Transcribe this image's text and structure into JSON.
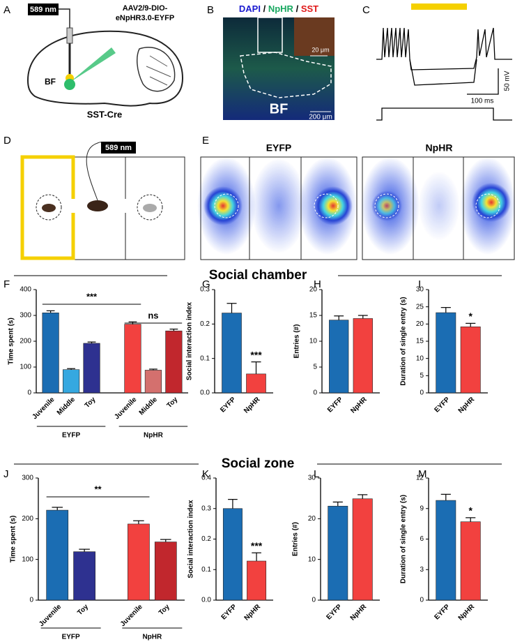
{
  "figure": {
    "panel_labels": [
      "A",
      "B",
      "C",
      "D",
      "E",
      "F",
      "G",
      "H",
      "I",
      "J",
      "K",
      "L",
      "M"
    ],
    "sections": [
      "Social chamber",
      "Social zone"
    ],
    "panel_a": {
      "laser": "589 nm",
      "virus": [
        "AAV2/9-DIO-",
        "eNpHR3.0-EYFP"
      ],
      "region": "BF",
      "mouse": "SST-Cre"
    },
    "panel_b": {
      "channels": [
        "DAPI",
        "NpHR",
        "SST"
      ],
      "separator": "/",
      "inset_scale": "20 μm",
      "region": "BF",
      "scale": "200 μm"
    },
    "panel_c": {
      "voltage_scale": "50 mV",
      "time_scale": "100 ms"
    },
    "panel_d": {
      "laser": "589 nm"
    },
    "panel_e": {
      "groups": [
        "EYFP",
        "NpHR"
      ]
    }
  },
  "chart_data": [
    {
      "type": "bar",
      "y_label": "Time spent (s)",
      "categories": [
        "Juvenile",
        "Middle",
        "Toy",
        "Juvenile",
        "Middle",
        "Toy"
      ],
      "values": [
        310,
        90,
        192,
        266,
        88,
        240
      ],
      "errors": [
        8,
        4,
        5,
        9,
        4,
        7
      ],
      "colors": [
        "#1b6db3",
        "#35a8e0",
        "#2e3190",
        "#f2413f",
        "#d4706e",
        "#c1272d"
      ],
      "groups": [
        "EYFP",
        "NpHR"
      ],
      "annotations": [
        "***",
        "ns"
      ],
      "ylim": [
        0,
        400
      ],
      "yticks": [
        0,
        100,
        200,
        300,
        400
      ]
    },
    {
      "type": "bar",
      "y_label": "Social interaction index",
      "categories": [
        "EYFP",
        "NpHR"
      ],
      "values": [
        0.232,
        0.055
      ],
      "errors": [
        0.028,
        0.035
      ],
      "colors": [
        "#1b6db3",
        "#f2413f"
      ],
      "annotations": [
        "***"
      ],
      "ylim": [
        0,
        0.3
      ],
      "yticks": [
        {
          "value": 0,
          "label": "0.0"
        },
        0.1,
        0.2,
        0.3
      ]
    },
    {
      "type": "bar",
      "y_label": "Entries (#)",
      "categories": [
        "EYFP",
        "NpHR"
      ],
      "values": [
        14.1,
        14.4
      ],
      "errors": [
        0.8,
        0.6
      ],
      "colors": [
        "#1b6db3",
        "#f2413f"
      ],
      "ylim": [
        0,
        20
      ],
      "yticks": [
        0,
        5,
        10,
        15,
        20
      ]
    },
    {
      "type": "bar",
      "y_label": "Duration of single entry (s)",
      "categories": [
        "EYFP",
        "NpHR"
      ],
      "values": [
        23.3,
        19.2
      ],
      "errors": [
        1.5,
        1.0
      ],
      "colors": [
        "#1b6db3",
        "#f2413f"
      ],
      "annotations": [
        "*"
      ],
      "ylim": [
        0,
        30
      ],
      "yticks": [
        0,
        5,
        10,
        15,
        20,
        25,
        30
      ]
    },
    {
      "type": "bar",
      "y_label": "Time spent (s)",
      "categories": [
        "Juvenile",
        "Toy",
        "Juvenile",
        "Toy"
      ],
      "values": [
        221,
        119,
        187,
        143
      ],
      "errors": [
        7,
        6,
        8,
        6
      ],
      "colors": [
        "#1b6db3",
        "#2e3190",
        "#f2413f",
        "#c1272d"
      ],
      "groups": [
        "EYFP",
        "NpHR"
      ],
      "annotations": [
        "**"
      ],
      "ylim": [
        0,
        300
      ],
      "yticks": [
        0,
        100,
        200,
        300
      ]
    },
    {
      "type": "bar",
      "y_label": "Social interaction index",
      "categories": [
        "EYFP",
        "NpHR"
      ],
      "values": [
        0.3,
        0.128
      ],
      "errors": [
        0.03,
        0.027
      ],
      "colors": [
        "#1b6db3",
        "#f2413f"
      ],
      "annotations": [
        "***"
      ],
      "ylim": [
        0,
        0.4
      ],
      "yticks": [
        {
          "value": 0,
          "label": "0.0"
        },
        0.1,
        0.2,
        0.3,
        0.4
      ]
    },
    {
      "type": "bar",
      "y_label": "Entries (#)",
      "categories": [
        "EYFP",
        "NpHR"
      ],
      "values": [
        23.1,
        24.9
      ],
      "errors": [
        1.0,
        1.0
      ],
      "colors": [
        "#1b6db3",
        "#f2413f"
      ],
      "ylim": [
        0,
        30
      ],
      "yticks": [
        0,
        10,
        20,
        30
      ]
    },
    {
      "type": "bar",
      "y_label": "Duration of single entry (s)",
      "categories": [
        "EYFP",
        "NpHR"
      ],
      "values": [
        9.8,
        7.7
      ],
      "errors": [
        0.6,
        0.4
      ],
      "colors": [
        "#1b6db3",
        "#f2413f"
      ],
      "annotations": [
        "*"
      ],
      "ylim": [
        0,
        12
      ],
      "yticks": [
        0,
        3,
        6,
        9,
        12
      ]
    }
  ]
}
